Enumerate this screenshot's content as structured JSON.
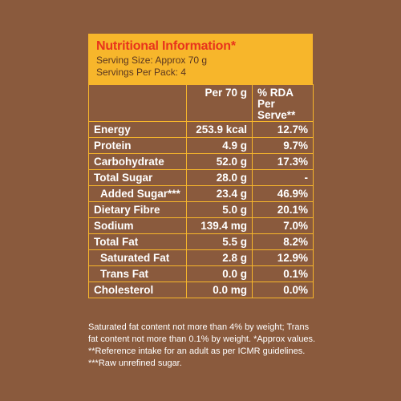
{
  "header": {
    "title": "Nutritional Information*",
    "serving_size": "Serving Size: Approx 70 g",
    "servings_per_pack": "Servings Per Pack: 4"
  },
  "table": {
    "columns": [
      "",
      "Per 70 g",
      "% RDA Per Serve**"
    ],
    "rows": [
      {
        "nutrient": "Energy",
        "per": "253.9 kcal",
        "rda": "12.7%",
        "indent": false
      },
      {
        "nutrient": "Protein",
        "per": "4.9 g",
        "rda": "9.7%",
        "indent": false
      },
      {
        "nutrient": "Carbohydrate",
        "per": "52.0 g",
        "rda": "17.3%",
        "indent": false
      },
      {
        "nutrient": "Total Sugar",
        "per": "28.0 g",
        "rda": "-",
        "indent": false
      },
      {
        "nutrient": "Added Sugar***",
        "per": "23.4 g",
        "rda": "46.9%",
        "indent": true
      },
      {
        "nutrient": "Dietary Fibre",
        "per": "5.0 g",
        "rda": "20.1%",
        "indent": false
      },
      {
        "nutrient": "Sodium",
        "per": "139.4 mg",
        "rda": "7.0%",
        "indent": false
      },
      {
        "nutrient": "Total Fat",
        "per": "5.5 g",
        "rda": "8.2%",
        "indent": false
      },
      {
        "nutrient": "Saturated Fat",
        "per": "2.8 g",
        "rda": "12.9%",
        "indent": true
      },
      {
        "nutrient": "Trans Fat",
        "per": "0.0 g",
        "rda": "0.1%",
        "indent": true
      },
      {
        "nutrient": "Cholesterol",
        "per": "0.0 mg",
        "rda": "0.0%",
        "indent": false
      }
    ]
  },
  "footnote": "Saturated fat content not more than 4% by weight; Trans fat content not more than 0.1% by weight. *Approx values. **Reference intake for an adult as per ICMR guidelines. ***Raw unrefined sugar.",
  "colors": {
    "background": "#8a5a3d",
    "accent": "#f7b62b",
    "title": "#e8341c"
  }
}
